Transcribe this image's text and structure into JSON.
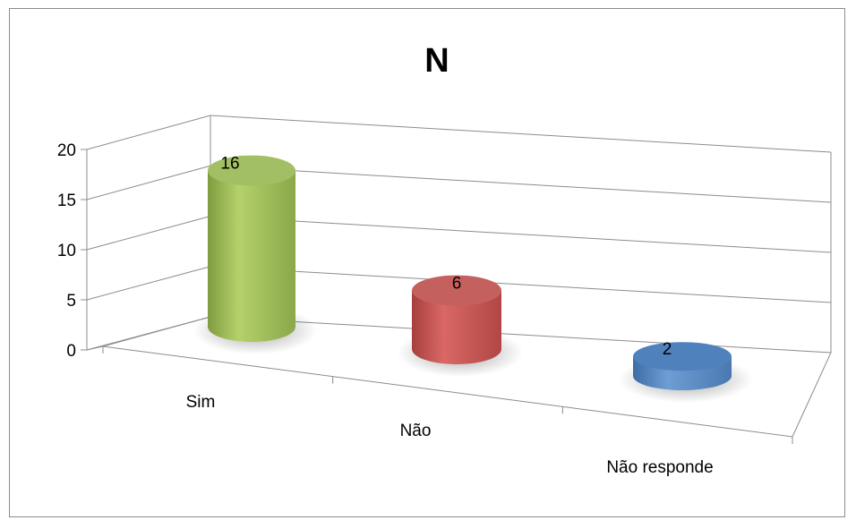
{
  "chart_data": {
    "type": "bar",
    "style": "3d-cylinder",
    "title": "N",
    "categories": [
      "Sim",
      "Não",
      "Não responde"
    ],
    "values": [
      16,
      6,
      2
    ],
    "colors": [
      "#9bbb59",
      "#c0504d",
      "#4f81bd"
    ],
    "ylim": [
      0,
      20
    ],
    "yticks": [
      "0",
      "5",
      "10",
      "15",
      "20"
    ],
    "data_labels": [
      "16",
      "6",
      "2"
    ],
    "grid": true,
    "legend": "none"
  }
}
